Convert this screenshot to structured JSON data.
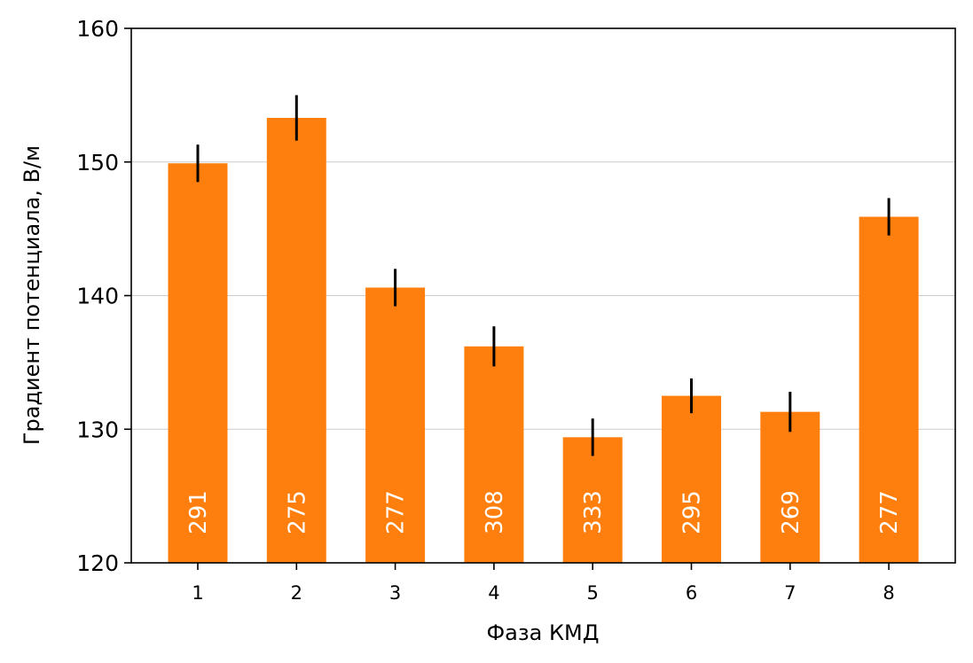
{
  "chart_data": {
    "type": "bar",
    "categories": [
      "1",
      "2",
      "3",
      "4",
      "5",
      "6",
      "7",
      "8"
    ],
    "values": [
      149.9,
      153.3,
      140.6,
      136.2,
      129.4,
      132.5,
      131.3,
      145.9
    ],
    "errors": [
      1.4,
      1.7,
      1.4,
      1.5,
      1.4,
      1.3,
      1.5,
      1.4
    ],
    "counts": [
      "291",
      "275",
      "277",
      "308",
      "333",
      "295",
      "269",
      "277"
    ],
    "xlabel": "Фаза КМД",
    "ylabel": "Градиент потенциала, В/м",
    "ylim": [
      120,
      160
    ],
    "yticks": [
      "120",
      "130",
      "140",
      "150",
      "160"
    ],
    "grid": "horizontal",
    "bar_color": "#ff7f0e",
    "error_color": "#000000",
    "count_label_color": "#ffffff"
  }
}
